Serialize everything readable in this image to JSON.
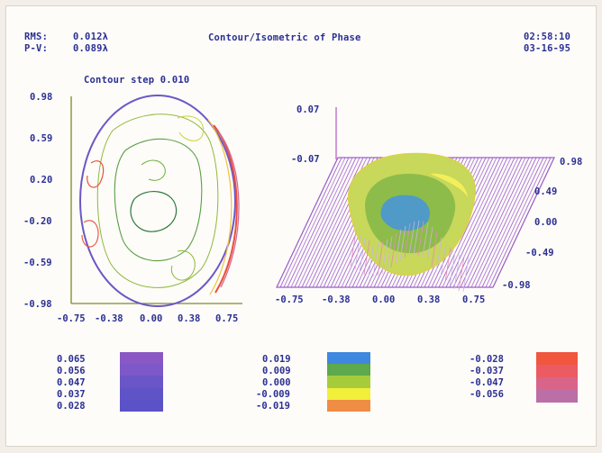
{
  "header": {
    "rms_label": "RMS:",
    "rms_value": "0.012λ",
    "pv_label": "P-V:",
    "pv_value": "0.089λ",
    "title": "Contour/Isometric of Phase",
    "time": "02:58:10",
    "date": "03-16-95"
  },
  "contour_step": "Contour step  0.010",
  "chart_data": [
    {
      "type": "contour",
      "title": "Contour step  0.010",
      "x_ticks": [
        "-0.75",
        "-0.38",
        "0.00",
        "0.38",
        "0.75"
      ],
      "y_ticks": [
        "0.98",
        "0.59",
        "0.20",
        "-0.20",
        "-0.59",
        "-0.98"
      ],
      "xlim": [
        -0.75,
        0.75
      ],
      "ylim": [
        -0.98,
        0.98
      ]
    },
    {
      "type": "surface",
      "z_ticks": [
        "0.07",
        "-0.07"
      ],
      "x_ticks": [
        "-0.75",
        "-0.38",
        "0.00",
        "0.38",
        "0.75"
      ],
      "y_ticks": [
        "0.98",
        "0.49",
        "0.00",
        "-0.49",
        "-0.98"
      ],
      "zlim": [
        -0.07,
        0.07
      ]
    }
  ],
  "legends": [
    {
      "values": [
        "0.065",
        "0.056",
        "0.047",
        "0.037",
        "0.028"
      ],
      "colors": [
        "#8a58c4",
        "#7d58c8",
        "#6b56c8",
        "#5f53c8",
        "#5a52c6"
      ]
    },
    {
      "values": [
        "0.019",
        "0.009",
        "0.000",
        "-0.009",
        "-0.019"
      ],
      "colors": [
        "#3f88df",
        "#5da94b",
        "#a6cc3b",
        "#f2ef3a",
        "#ef8d44"
      ]
    },
    {
      "values": [
        "-0.028",
        "-0.037",
        "-0.047",
        "-0.056"
      ],
      "colors": [
        "#f0573e",
        "#ec5b62",
        "#d9648a",
        "#bb6fa6"
      ]
    }
  ]
}
